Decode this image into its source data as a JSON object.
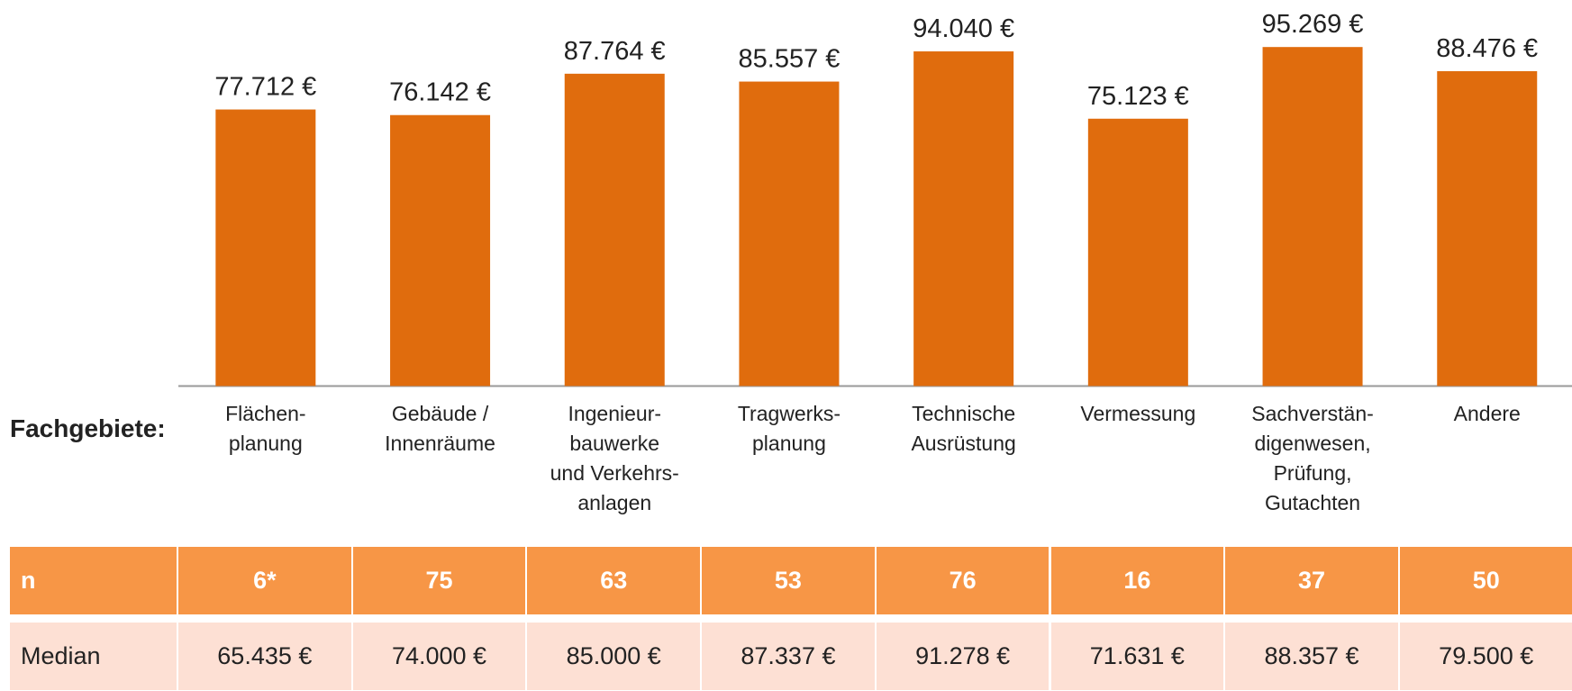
{
  "chart_data": {
    "type": "bar",
    "xlabel": "Fachgebiete:",
    "categories": [
      "Flächen-\nplanung",
      "Gebäude /\nInnenräume",
      "Ingenieur-\nbauwerke\nund Verkehrs-\nanlagen",
      "Tragwerks-\nplanung",
      "Technische\nAusrüstung",
      "Vermessung",
      "Sachverstän-\ndigenwesen,\nPrüfung,\nGutachten",
      "Andere"
    ],
    "values": [
      77712,
      76142,
      87764,
      85557,
      94040,
      75123,
      95269,
      88476
    ],
    "value_labels": [
      "77.712 €",
      "76.142 €",
      "87.764 €",
      "85.557 €",
      "94.040 €",
      "75.123 €",
      "95.269 €",
      "88.476 €"
    ],
    "color": "#e06c0d",
    "ylim": [
      0,
      100000
    ]
  },
  "table": {
    "rows": [
      [
        "n",
        "6*",
        "75",
        "63",
        "53",
        "76",
        "16",
        "37",
        "50"
      ],
      [
        "Median",
        "65.435 €",
        "74.000 €",
        "85.000 €",
        "87.337 €",
        "91.278 €",
        "71.631 €",
        "88.357 €",
        "79.500 €"
      ]
    ]
  }
}
